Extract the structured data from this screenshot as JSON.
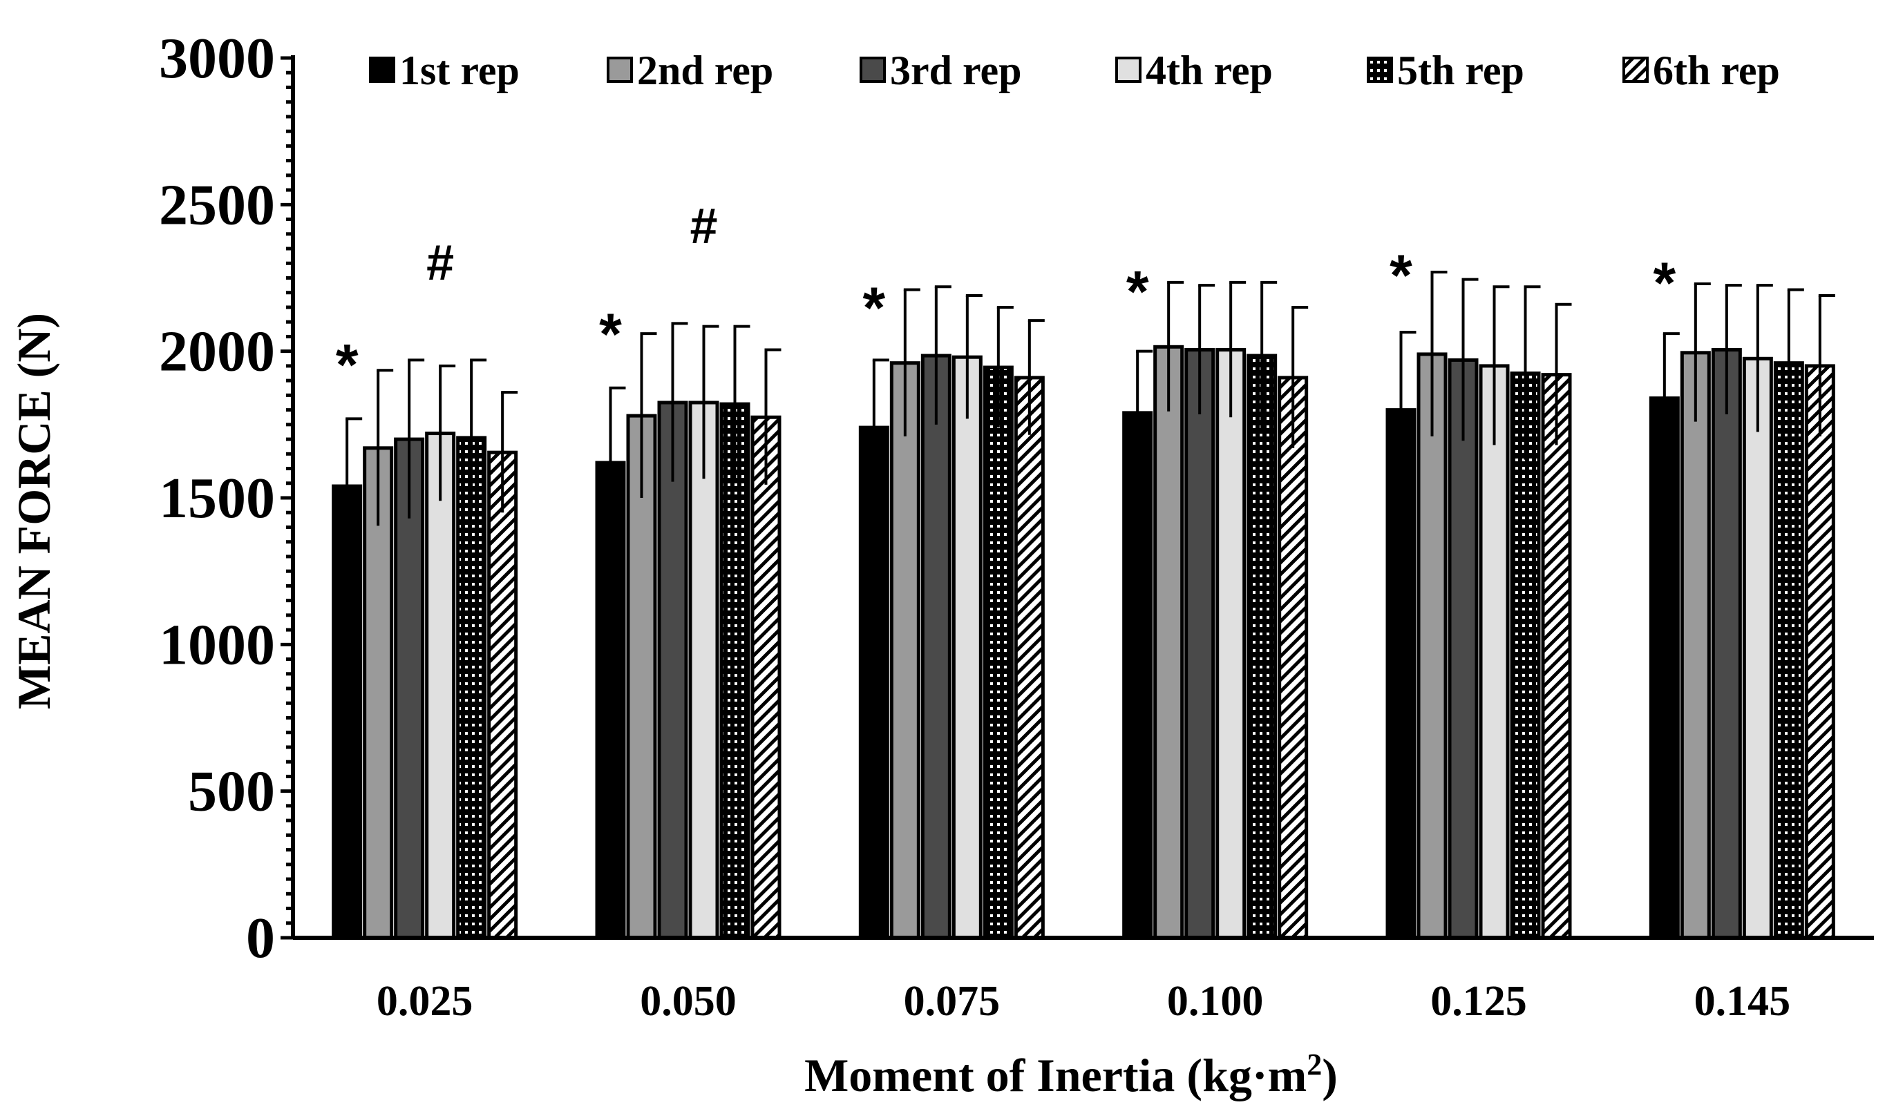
{
  "chart_data": {
    "type": "bar",
    "title": "",
    "xlabel": "Moment of Inertia  (kg·m",
    "xlabel_superscript": "2",
    "xlabel_suffix": ")",
    "ylabel": "MEAN FORCE (N)",
    "ylim": [
      0,
      3000
    ],
    "yticks": [
      0,
      500,
      1000,
      1500,
      2000,
      2500,
      3000
    ],
    "yticks_labels": [
      "0",
      "500",
      "1000",
      "1500",
      "2000",
      "2500",
      "3000"
    ],
    "categories": [
      "0.025",
      "0.050",
      "0.075",
      "0.100",
      "0.125",
      "0.145"
    ],
    "legend_position": "top",
    "series": [
      {
        "name": "1st rep",
        "color": "#000000",
        "pattern": "solid-black",
        "values": [
          1540,
          1620,
          1740,
          1790,
          1800,
          1840
        ],
        "errors": [
          230,
          255,
          230,
          210,
          265,
          220
        ]
      },
      {
        "name": "2nd rep",
        "color": "#9a9a9a",
        "pattern": "solid-gray",
        "values": [
          1670,
          1780,
          1960,
          2015,
          1990,
          1995
        ],
        "errors": [
          265,
          280,
          250,
          220,
          280,
          235
        ]
      },
      {
        "name": "3rd rep",
        "color": "#4a4a4a",
        "pattern": "solid-darkgray",
        "values": [
          1700,
          1825,
          1985,
          2005,
          1970,
          2005
        ],
        "errors": [
          270,
          270,
          235,
          220,
          275,
          220
        ]
      },
      {
        "name": "4th rep",
        "color": "#e0e0e0",
        "pattern": "light-outlined",
        "values": [
          1720,
          1825,
          1980,
          2005,
          1950,
          1975
        ],
        "errors": [
          230,
          260,
          210,
          230,
          270,
          250
        ]
      },
      {
        "name": "5th rep",
        "color": "#000000",
        "pattern": "dots",
        "values": [
          1705,
          1820,
          1945,
          1985,
          1925,
          1960
        ],
        "errors": [
          265,
          265,
          205,
          250,
          295,
          250
        ]
      },
      {
        "name": "6th rep",
        "color": "#ffffff",
        "pattern": "diagonal-hatch",
        "values": [
          1655,
          1775,
          1910,
          1910,
          1920,
          1950
        ],
        "errors": [
          205,
          230,
          195,
          240,
          240,
          240
        ]
      }
    ],
    "annotations": [
      {
        "text": "*",
        "category": "0.025",
        "series": "1st rep",
        "y": 1980
      },
      {
        "text": "#",
        "category": "0.025",
        "series": "4th rep",
        "y": 2310
      },
      {
        "text": "*",
        "category": "0.050",
        "series": "1st rep",
        "y": 2085
      },
      {
        "text": "#",
        "category": "0.050",
        "series": "4th rep",
        "y": 2435
      },
      {
        "text": "*",
        "category": "0.075",
        "series": "1st rep",
        "y": 2175
      },
      {
        "text": "*",
        "category": "0.100",
        "series": "1st rep",
        "y": 2230
      },
      {
        "text": "*",
        "category": "0.125",
        "series": "1st rep",
        "y": 2285
      },
      {
        "text": "*",
        "category": "0.145",
        "series": "1st rep",
        "y": 2260
      }
    ]
  }
}
